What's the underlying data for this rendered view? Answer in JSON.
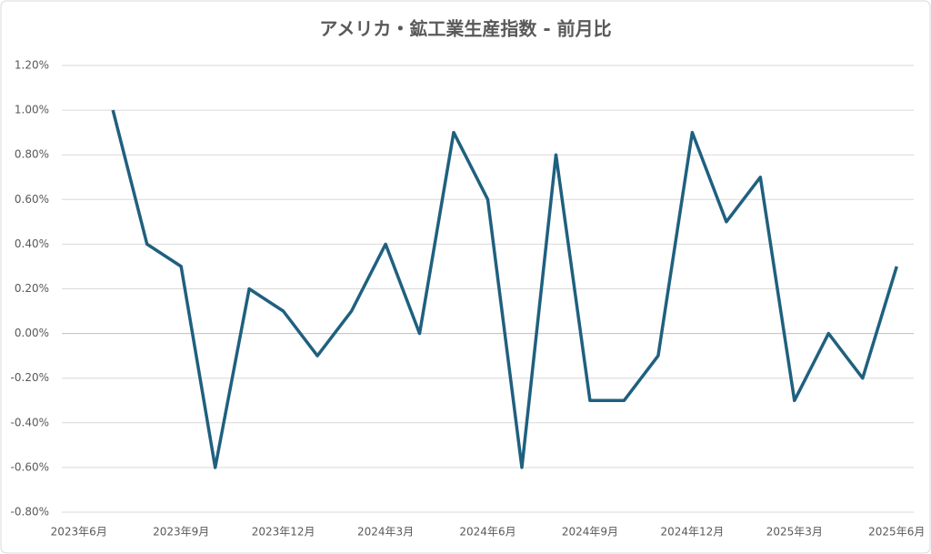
{
  "chart_data": {
    "type": "line",
    "title": "アメリカ・鉱工業生産指数 - 前月比",
    "categories": [
      "2023年6月",
      null,
      null,
      "2023年9月",
      null,
      null,
      "2023年12月",
      null,
      null,
      "2024年3月",
      null,
      null,
      "2024年6月",
      null,
      null,
      "2024年9月",
      null,
      null,
      "2024年12月",
      null,
      null,
      "2025年3月",
      null,
      null,
      "2025年6月"
    ],
    "series": [
      {
        "color": "#1f607f",
        "values": [
          null,
          1.0,
          0.4,
          0.3,
          -0.6,
          0.2,
          0.1,
          -0.1,
          0.1,
          0.4,
          0.0,
          0.9,
          0.6,
          -0.6,
          0.8,
          -0.3,
          -0.3,
          -0.1,
          0.9,
          0.5,
          0.7,
          -0.3,
          0.0,
          -0.2,
          0.3
        ]
      }
    ],
    "ylim": [
      -0.8,
      1.2
    ],
    "yticks": [
      {
        "value": -0.8,
        "label": "-0.80%"
      },
      {
        "value": -0.6,
        "label": "-0.60%"
      },
      {
        "value": -0.4,
        "label": "-0.40%"
      },
      {
        "value": -0.2,
        "label": "-0.20%"
      },
      {
        "value": 0,
        "label": "0.00%"
      },
      {
        "value": 0.2,
        "label": "0.20%"
      },
      {
        "value": 0.4,
        "label": "0.40%"
      },
      {
        "value": 0.6,
        "label": "0.60%"
      },
      {
        "value": 0.8,
        "label": "0.80%"
      },
      {
        "value": 1.0,
        "label": "1.00%"
      },
      {
        "value": 1.2,
        "label": "1.20%"
      }
    ],
    "grid": true
  }
}
